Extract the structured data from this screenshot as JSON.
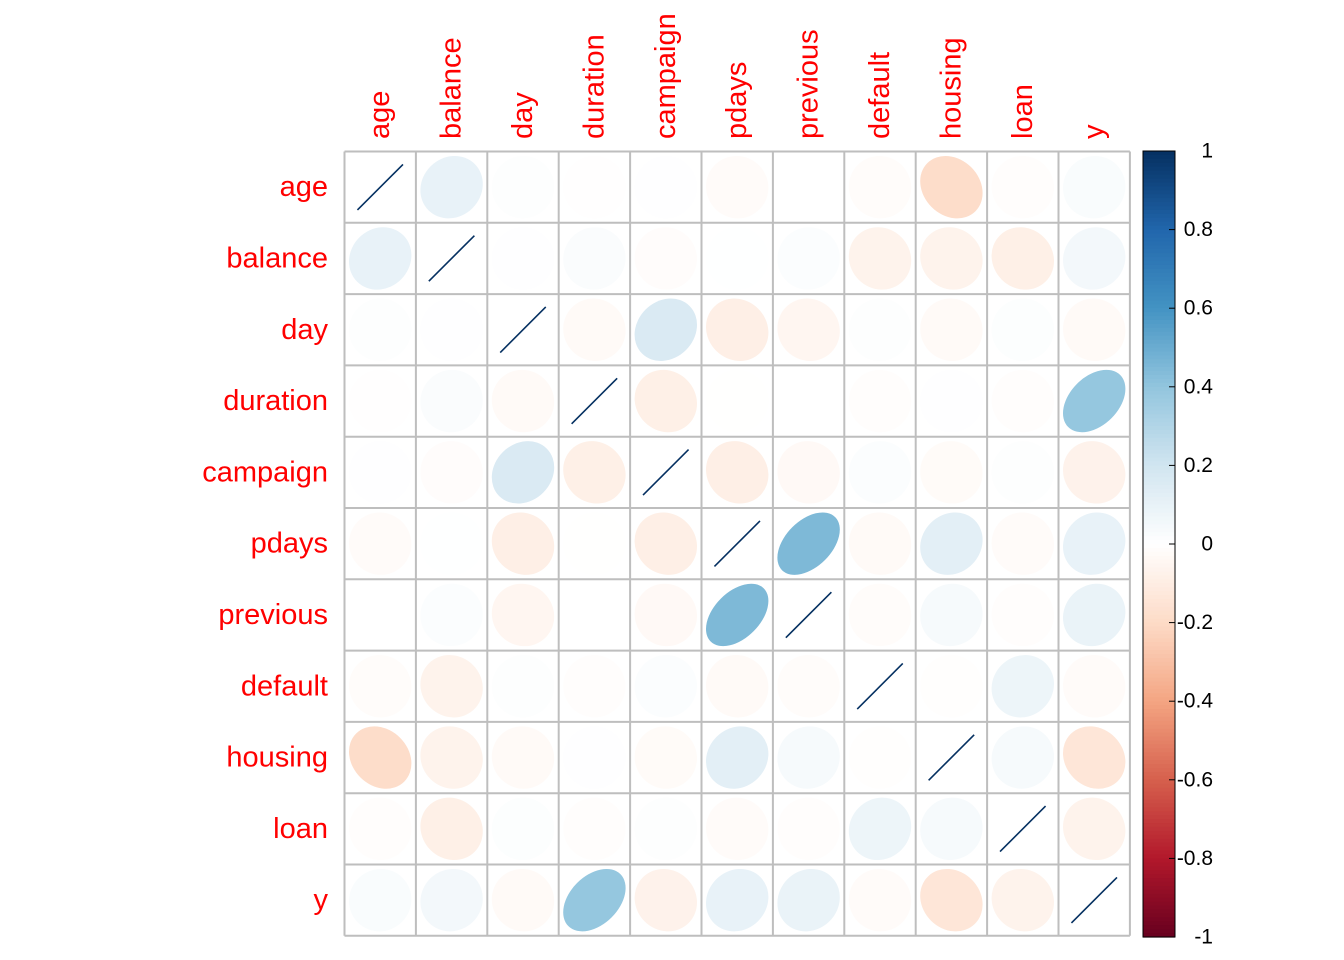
{
  "chart_data": {
    "type": "heatmap",
    "method": "ellipse",
    "variables": [
      "age",
      "balance",
      "day",
      "duration",
      "campaign",
      "pdays",
      "previous",
      "default",
      "housing",
      "loan",
      "y"
    ],
    "matrix": [
      [
        1.0,
        0.1,
        0.01,
        -0.005,
        0.005,
        -0.02,
        0.001,
        -0.018,
        -0.19,
        -0.011,
        0.025
      ],
      [
        0.1,
        1.0,
        0.004,
        0.022,
        -0.015,
        0.003,
        0.017,
        -0.067,
        -0.069,
        -0.084,
        0.053
      ],
      [
        0.01,
        0.004,
        1.0,
        -0.03,
        0.16,
        -0.09,
        -0.05,
        0.009,
        -0.028,
        0.011,
        -0.028
      ],
      [
        -0.005,
        0.022,
        -0.03,
        1.0,
        -0.085,
        -0.002,
        0.001,
        -0.01,
        0.005,
        -0.012,
        0.39
      ],
      [
        0.005,
        -0.015,
        0.16,
        -0.085,
        1.0,
        -0.089,
        -0.033,
        0.017,
        -0.024,
        0.01,
        -0.073
      ],
      [
        -0.02,
        0.003,
        -0.09,
        -0.002,
        -0.089,
        1.0,
        0.45,
        -0.03,
        0.12,
        -0.023,
        0.1
      ],
      [
        0.001,
        0.017,
        -0.05,
        0.001,
        -0.033,
        0.45,
        1.0,
        -0.018,
        0.037,
        -0.011,
        0.093
      ],
      [
        -0.018,
        -0.067,
        0.009,
        -0.01,
        0.017,
        -0.03,
        -0.018,
        1.0,
        -0.006,
        0.077,
        -0.022
      ],
      [
        -0.19,
        -0.069,
        -0.028,
        0.005,
        -0.024,
        0.12,
        0.037,
        -0.006,
        1.0,
        0.041,
        -0.14
      ],
      [
        -0.011,
        -0.084,
        0.011,
        -0.012,
        0.01,
        -0.023,
        -0.011,
        0.077,
        0.041,
        1.0,
        -0.068
      ],
      [
        0.025,
        0.053,
        -0.028,
        0.39,
        -0.073,
        0.1,
        0.093,
        -0.022,
        -0.14,
        -0.068,
        1.0
      ]
    ],
    "colorbar": {
      "ticks": [
        "1",
        "0.8",
        "0.6",
        "0.4",
        "0.2",
        "0",
        "-0.2",
        "-0.4",
        "-0.6",
        "-0.8",
        "-1"
      ],
      "range": [
        -1,
        1
      ]
    },
    "label_color": "#ff0000",
    "grid_color": "#bebebe",
    "colors": [
      "#67001F",
      "#B2182B",
      "#D6604D",
      "#F4A582",
      "#FDDBC7",
      "#FFFFFF",
      "#D1E5F0",
      "#92C5DE",
      "#4393C3",
      "#2166AC",
      "#053061"
    ]
  }
}
